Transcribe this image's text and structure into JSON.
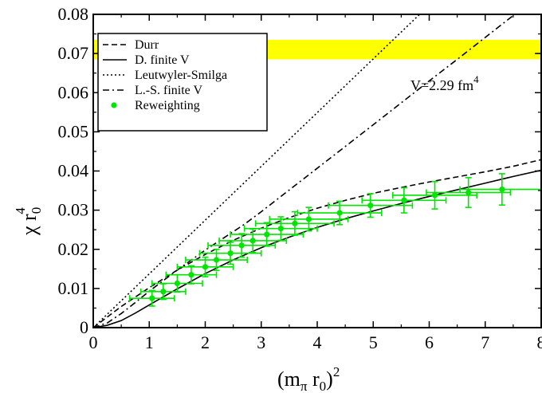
{
  "chart_data": {
    "type": "line",
    "xlabel": {
      "base": "(m",
      "sub1": "π",
      "mid": " r",
      "sub2": "0",
      "close": ")",
      "sup": "2"
    },
    "ylabel": {
      "base": "χ r",
      "sub": "0",
      "sup": "4"
    },
    "xlim": [
      0,
      8
    ],
    "ylim": [
      0,
      0.08
    ],
    "xticks": [
      0,
      1,
      2,
      3,
      4,
      5,
      6,
      7,
      8
    ],
    "yticks": [
      0,
      0.01,
      0.02,
      0.03,
      0.04,
      0.05,
      0.06,
      0.07,
      0.08
    ],
    "xtick_labels": [
      "0",
      "1",
      "2",
      "3",
      "4",
      "5",
      "6",
      "7",
      "8"
    ],
    "ytick_labels": [
      "0",
      "0.01",
      "0.02",
      "0.03",
      "0.04",
      "0.05",
      "0.06",
      "0.07",
      "0.08"
    ],
    "band": {
      "y_low": 0.0685,
      "y_high": 0.0735,
      "color": "#ffff00"
    },
    "annotation": {
      "base": "V=2.29 fm",
      "sup": "4"
    },
    "legend": [
      {
        "label": "Durr",
        "style": "dashed"
      },
      {
        "label": "D. finite V",
        "style": "solid"
      },
      {
        "label": "Leutwyler-Smilga",
        "style": "dotted"
      },
      {
        "label": "L.-S. finite V",
        "style": "dashdot"
      },
      {
        "label": "Reweighting",
        "style": "marker"
      }
    ],
    "legend_position": "top-left",
    "series": [
      {
        "name": "Durr",
        "style": "dashed",
        "x": [
          0,
          0.5,
          1,
          1.5,
          2,
          2.5,
          3,
          3.5,
          4,
          4.5,
          5,
          5.5,
          6,
          6.5,
          7,
          7.5,
          8
        ],
        "y": [
          0,
          0.0054,
          0.0102,
          0.0147,
          0.0187,
          0.0223,
          0.0254,
          0.0281,
          0.0305,
          0.0325,
          0.0343,
          0.0358,
          0.0372,
          0.0385,
          0.0398,
          0.0412,
          0.0429
        ]
      },
      {
        "name": "D. finite V",
        "style": "solid",
        "x": [
          0,
          0.25,
          0.5,
          0.75,
          1,
          1.5,
          2,
          2.5,
          3,
          3.5,
          4,
          4.5,
          5,
          5.5,
          6,
          6.5,
          7,
          7.5,
          8
        ],
        "y": [
          0,
          0.0006,
          0.0018,
          0.0037,
          0.0058,
          0.0099,
          0.0138,
          0.0173,
          0.0204,
          0.0231,
          0.0256,
          0.0278,
          0.0298,
          0.0317,
          0.0335,
          0.0352,
          0.0369,
          0.0386,
          0.0402
        ]
      },
      {
        "name": "Leutwyler-Smilga",
        "style": "dotted",
        "x": [
          0,
          8
        ],
        "y": [
          0,
          0.1098
        ]
      },
      {
        "name": "L.-S. finite V",
        "style": "dashdot",
        "x": [
          0,
          0.25,
          0.5,
          0.75,
          1,
          1.5,
          2,
          2.5,
          2.7,
          3,
          4,
          5,
          6,
          6.5,
          7,
          7.5,
          8
        ],
        "y": [
          0,
          0.0012,
          0.0036,
          0.0064,
          0.0093,
          0.0147,
          0.0198,
          0.0245,
          0.0264,
          0.0296,
          0.0407,
          0.0518,
          0.063,
          0.0685,
          0.0741,
          0.0797,
          0.0852
        ]
      },
      {
        "name": "Reweighting",
        "style": "marker",
        "color": "#00e600",
        "points": [
          {
            "x": 1.05,
            "y": 0.0075,
            "xerr": 0.4,
            "yerr": 0.002
          },
          {
            "x": 1.25,
            "y": 0.0092,
            "xerr": 0.4,
            "yerr": 0.002
          },
          {
            "x": 1.5,
            "y": 0.0113,
            "xerr": 0.45,
            "yerr": 0.0022
          },
          {
            "x": 1.75,
            "y": 0.0135,
            "xerr": 0.45,
            "yerr": 0.0023
          },
          {
            "x": 2.0,
            "y": 0.0155,
            "xerr": 0.5,
            "yerr": 0.0025
          },
          {
            "x": 2.2,
            "y": 0.0173,
            "xerr": 0.55,
            "yerr": 0.0027
          },
          {
            "x": 2.45,
            "y": 0.019,
            "xerr": 0.55,
            "yerr": 0.0028
          },
          {
            "x": 2.65,
            "y": 0.021,
            "xerr": 0.6,
            "yerr": 0.003
          },
          {
            "x": 2.85,
            "y": 0.0222,
            "xerr": 0.6,
            "yerr": 0.003
          },
          {
            "x": 3.1,
            "y": 0.0238,
            "xerr": 0.65,
            "yerr": 0.003
          },
          {
            "x": 3.35,
            "y": 0.0253,
            "xerr": 0.65,
            "yerr": 0.003
          },
          {
            "x": 3.6,
            "y": 0.0266,
            "xerr": 0.7,
            "yerr": 0.003
          },
          {
            "x": 3.85,
            "y": 0.0277,
            "xerr": 0.7,
            "yerr": 0.003
          },
          {
            "x": 4.4,
            "y": 0.0293,
            "xerr": 0.75,
            "yerr": 0.003
          },
          {
            "x": 4.95,
            "y": 0.0312,
            "xerr": 0.75,
            "yerr": 0.003
          },
          {
            "x": 5.55,
            "y": 0.0325,
            "xerr": 0.75,
            "yerr": 0.0032
          },
          {
            "x": 6.1,
            "y": 0.0338,
            "xerr": 0.75,
            "yerr": 0.0035
          },
          {
            "x": 6.7,
            "y": 0.0345,
            "xerr": 0.75,
            "yerr": 0.0038
          },
          {
            "x": 7.3,
            "y": 0.0353,
            "xerr": 0.75,
            "yerr": 0.004
          }
        ]
      }
    ]
  }
}
